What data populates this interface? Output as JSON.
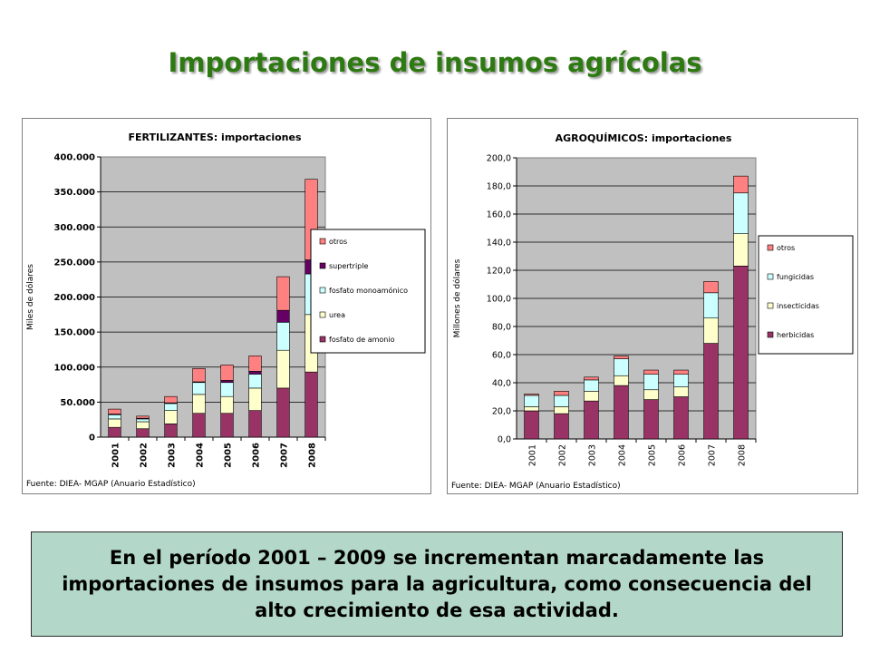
{
  "title": "Importaciones de insumos agrícolas",
  "footer_text": "En el período 2001 – 2009 se incrementan marcadamente las importaciones de insumos para la agricultura, como consecuencia del alto crecimiento de esa actividad.",
  "chart_data": [
    {
      "type": "bar",
      "stacked": true,
      "title": "FERTILIZANTES: importaciones",
      "ylabel": "Miles de dólares",
      "xlabel": "",
      "source": "Fuente: DIEA- MGAP (Anuario Estadístico)",
      "categories": [
        "2001",
        "2002",
        "2003",
        "2004",
        "2005",
        "2006",
        "2007",
        "2008"
      ],
      "ylim": [
        0,
        400000
      ],
      "yticks": [
        0,
        50000,
        100000,
        150000,
        200000,
        250000,
        300000,
        350000,
        400000
      ],
      "ytick_labels": [
        "0",
        "50.000",
        "100.000",
        "150.000",
        "200.000",
        "250.000",
        "300.000",
        "350.000",
        "400.000"
      ],
      "grid": true,
      "legend_position": "right",
      "series": [
        {
          "name": "fosfato de amonio",
          "color": "#993366",
          "values": [
            14000,
            12000,
            19000,
            34000,
            34000,
            38000,
            70000,
            93000
          ]
        },
        {
          "name": "urea",
          "color": "#ffffcc",
          "values": [
            12000,
            10000,
            19000,
            27000,
            24000,
            32000,
            54000,
            82000
          ]
        },
        {
          "name": "fosfato monoamónico",
          "color": "#ccffff",
          "values": [
            6000,
            4000,
            10000,
            17000,
            20000,
            20000,
            40000,
            58000
          ]
        },
        {
          "name": "supertriple",
          "color": "#660066",
          "values": [
            1000,
            1000,
            1000,
            1000,
            3000,
            4000,
            17000,
            20000
          ]
        },
        {
          "name": "otros",
          "color": "#ff8080",
          "values": [
            7000,
            3000,
            9000,
            19000,
            22000,
            22000,
            48000,
            115000
          ]
        }
      ]
    },
    {
      "type": "bar",
      "stacked": true,
      "title": "AGROQUÍMICOS: importaciones",
      "ylabel": "Millones de dólares",
      "xlabel": "",
      "source": "Fuente: DIEA- MGAP (Anuario Estadístico)",
      "categories": [
        "2001",
        "2002",
        "2003",
        "2004",
        "2005",
        "2006",
        "2007",
        "2008"
      ],
      "ylim": [
        0,
        200
      ],
      "yticks": [
        0,
        20,
        40,
        60,
        80,
        100,
        120,
        140,
        160,
        180,
        200
      ],
      "ytick_labels": [
        "0,0",
        "20,0",
        "40,0",
        "60,0",
        "80,0",
        "100,0",
        "120,0",
        "140,0",
        "160,0",
        "180,0",
        "200,0"
      ],
      "grid": true,
      "legend_position": "right",
      "series": [
        {
          "name": "herbicidas",
          "color": "#993366",
          "values": [
            20,
            18,
            27,
            38,
            28,
            30,
            68,
            123
          ]
        },
        {
          "name": "insecticidas",
          "color": "#ffffcc",
          "values": [
            3,
            5,
            7,
            7,
            7,
            7,
            18,
            23
          ]
        },
        {
          "name": "fungicidas",
          "color": "#ccffff",
          "values": [
            8,
            8,
            8,
            12,
            11,
            9,
            18,
            29
          ]
        },
        {
          "name": "otros",
          "color": "#ff8080",
          "values": [
            1,
            3,
            2,
            2,
            3,
            3,
            8,
            12
          ]
        }
      ]
    }
  ]
}
